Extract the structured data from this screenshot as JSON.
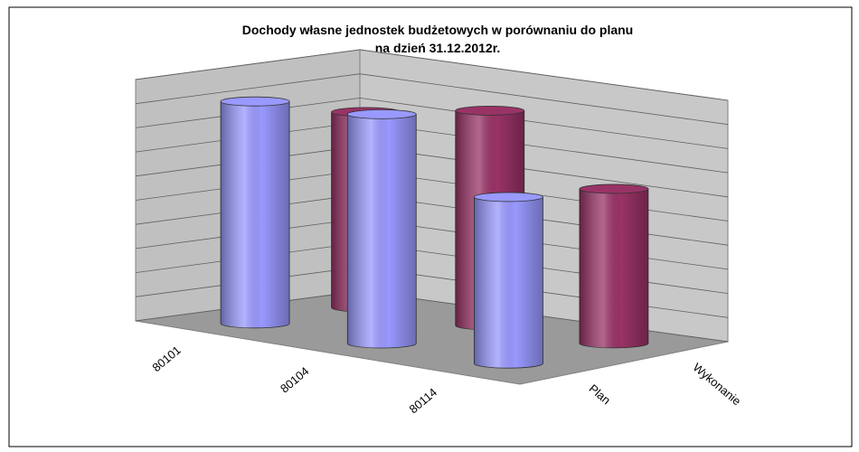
{
  "chart_data": {
    "type": "bar3d_cylinder",
    "title": "Dochody własne jednostek budżetowych w porównaniu do planu",
    "subtitle": "na dzień 31.12.2012r.",
    "categories": [
      "80101",
      "80104",
      "80114"
    ],
    "series": [
      {
        "name": "Plan",
        "color": "#9999ff",
        "values": [
          9.2,
          9.5,
          6.9
        ]
      },
      {
        "name": "Wykonanie",
        "color": "#993366",
        "values": [
          8.1,
          8.9,
          6.4
        ]
      }
    ],
    "ylim": [
      0,
      10
    ],
    "yticks": [
      0,
      1,
      2,
      3,
      4,
      5,
      6,
      7,
      8,
      9,
      10
    ],
    "grid": true
  }
}
